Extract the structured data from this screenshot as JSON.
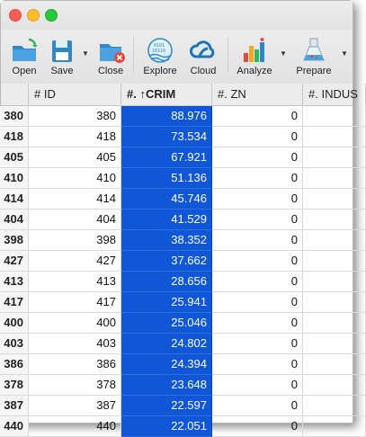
{
  "toolbar": {
    "open": "Open",
    "save": "Save",
    "close": "Close",
    "explore": "Explore",
    "cloud": "Cloud",
    "analyze": "Analyze",
    "prepare": "Prepare"
  },
  "columns": [
    "",
    "# ID",
    "#. ↑CRIM",
    "#. ZN",
    "#. INDUS"
  ],
  "rows": [
    {
      "row": "380",
      "id": "380",
      "crim": "88.976",
      "zn": "0"
    },
    {
      "row": "418",
      "id": "418",
      "crim": "73.534",
      "zn": "0"
    },
    {
      "row": "405",
      "id": "405",
      "crim": "67.921",
      "zn": "0"
    },
    {
      "row": "410",
      "id": "410",
      "crim": "51.136",
      "zn": "0"
    },
    {
      "row": "414",
      "id": "414",
      "crim": "45.746",
      "zn": "0"
    },
    {
      "row": "404",
      "id": "404",
      "crim": "41.529",
      "zn": "0"
    },
    {
      "row": "398",
      "id": "398",
      "crim": "38.352",
      "zn": "0"
    },
    {
      "row": "427",
      "id": "427",
      "crim": "37.662",
      "zn": "0"
    },
    {
      "row": "413",
      "id": "413",
      "crim": "28.656",
      "zn": "0"
    },
    {
      "row": "417",
      "id": "417",
      "crim": "25.941",
      "zn": "0"
    },
    {
      "row": "400",
      "id": "400",
      "crim": "25.046",
      "zn": "0"
    },
    {
      "row": "403",
      "id": "403",
      "crim": "24.802",
      "zn": "0"
    },
    {
      "row": "386",
      "id": "386",
      "crim": "24.394",
      "zn": "0"
    },
    {
      "row": "378",
      "id": "378",
      "crim": "23.648",
      "zn": "0"
    },
    {
      "row": "387",
      "id": "387",
      "crim": "22.597",
      "zn": "0"
    },
    {
      "row": "440",
      "id": "440",
      "crim": "22.051",
      "zn": "0"
    }
  ],
  "colors": {
    "selection": "#0f57d6",
    "accent": "#1a73e8"
  }
}
